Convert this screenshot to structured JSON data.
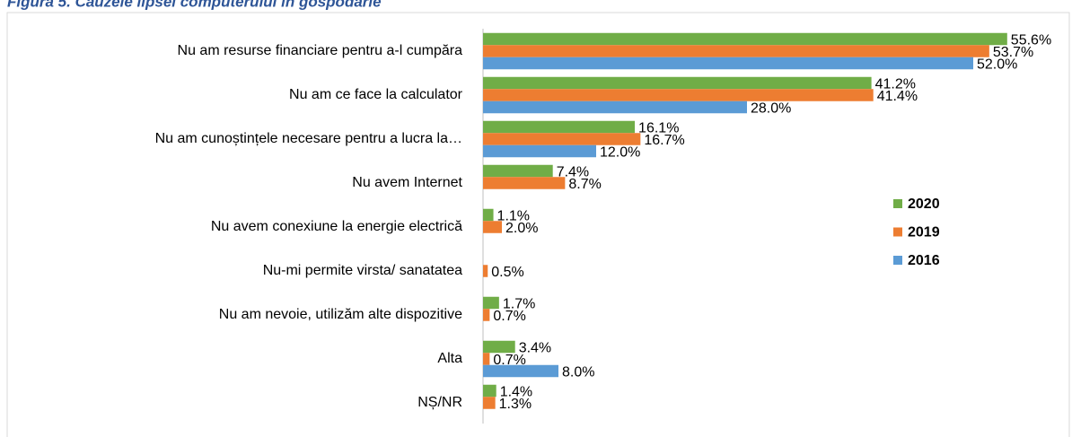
{
  "chart_data": {
    "type": "bar",
    "orientation": "horizontal",
    "title": "Figura 5. Cauzele lipsei computerului în gospodărie",
    "categories": [
      "Nu am resurse financiare pentru a-l cumpăra",
      "Nu am ce face la calculator",
      "Nu am cunoștințele necesare pentru a lucra la…",
      "Nu avem Internet",
      "Nu avem conexiune la energie electrică",
      "Nu-mi permite virsta/ sanatatea",
      "Nu am nevoie, utilizăm alte dispozitive",
      "Alta",
      "NȘ/NR"
    ],
    "series": [
      {
        "name": "2020",
        "color": "#70ad47",
        "values": [
          55.6,
          41.2,
          16.1,
          7.4,
          1.1,
          null,
          1.7,
          3.4,
          1.4
        ],
        "value_labels": [
          "55.6%",
          "41.2%",
          "16.1%",
          "7.4%",
          "1.1%",
          null,
          "1.7%",
          "3.4%",
          "1.4%"
        ]
      },
      {
        "name": "2019",
        "color": "#ed7d31",
        "values": [
          53.7,
          41.4,
          16.7,
          8.7,
          2.0,
          0.5,
          0.7,
          0.7,
          1.3
        ],
        "value_labels": [
          "53.7%",
          "41.4%",
          "16.7%",
          "8.7%",
          "2.0%",
          "0.5%",
          "0.7%",
          "0.7%",
          "1.3%"
        ]
      },
      {
        "name": "2016",
        "color": "#5b9bd5",
        "values": [
          52.0,
          28.0,
          12.0,
          null,
          null,
          null,
          null,
          8.0,
          null
        ],
        "value_labels": [
          "52.0%",
          "28.0%",
          "12.0%",
          null,
          null,
          null,
          null,
          "8.0%",
          null
        ]
      }
    ],
    "xlim": [
      0,
      62
    ],
    "legend": "right"
  }
}
